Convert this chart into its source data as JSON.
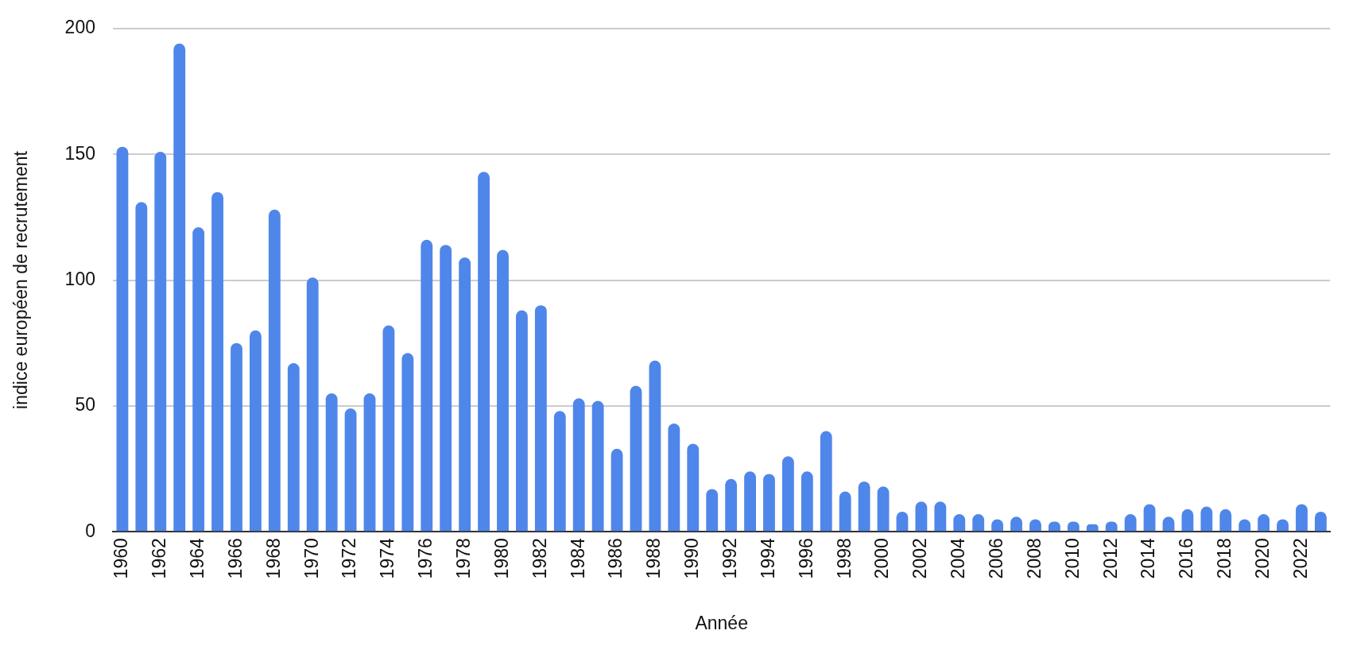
{
  "chart_data": {
    "type": "bar",
    "xlabel": "Année",
    "ylabel": "indice européen de recrutement",
    "categories": [
      "1960",
      null,
      "1962",
      null,
      "1964",
      null,
      "1966",
      null,
      "1968",
      null,
      "1970",
      null,
      "1972",
      null,
      "1974",
      null,
      "1976",
      null,
      "1978",
      null,
      "1980",
      null,
      "1982",
      null,
      "1984",
      null,
      "1986",
      null,
      "1988",
      null,
      "1990",
      null,
      "1992",
      null,
      "1994",
      null,
      "1996",
      null,
      "1998",
      null,
      "2000",
      null,
      "2002",
      null,
      "2004",
      null,
      "2006",
      null,
      "2008",
      null,
      "2010",
      null,
      "2012",
      null,
      "2014",
      null,
      "2016",
      null,
      "2018",
      null,
      "2020",
      null,
      "2022",
      null
    ],
    "values": [
      153,
      131,
      151,
      194,
      121,
      135,
      75,
      80,
      128,
      67,
      101,
      55,
      49,
      55,
      82,
      71,
      116,
      114,
      109,
      143,
      112,
      88,
      90,
      48,
      53,
      52,
      33,
      58,
      68,
      43,
      35,
      17,
      21,
      24,
      23,
      30,
      24,
      40,
      16,
      20,
      18,
      8,
      12,
      12,
      7,
      7,
      5,
      6,
      5,
      4,
      4,
      3,
      4,
      7,
      11,
      6,
      9,
      10,
      9,
      5,
      7,
      5,
      11,
      8
    ],
    "color": "#4f86ea",
    "ylim": [
      0,
      200
    ],
    "yticks": [
      0,
      50,
      100,
      150,
      200
    ],
    "grid": "y",
    "legend": false
  }
}
